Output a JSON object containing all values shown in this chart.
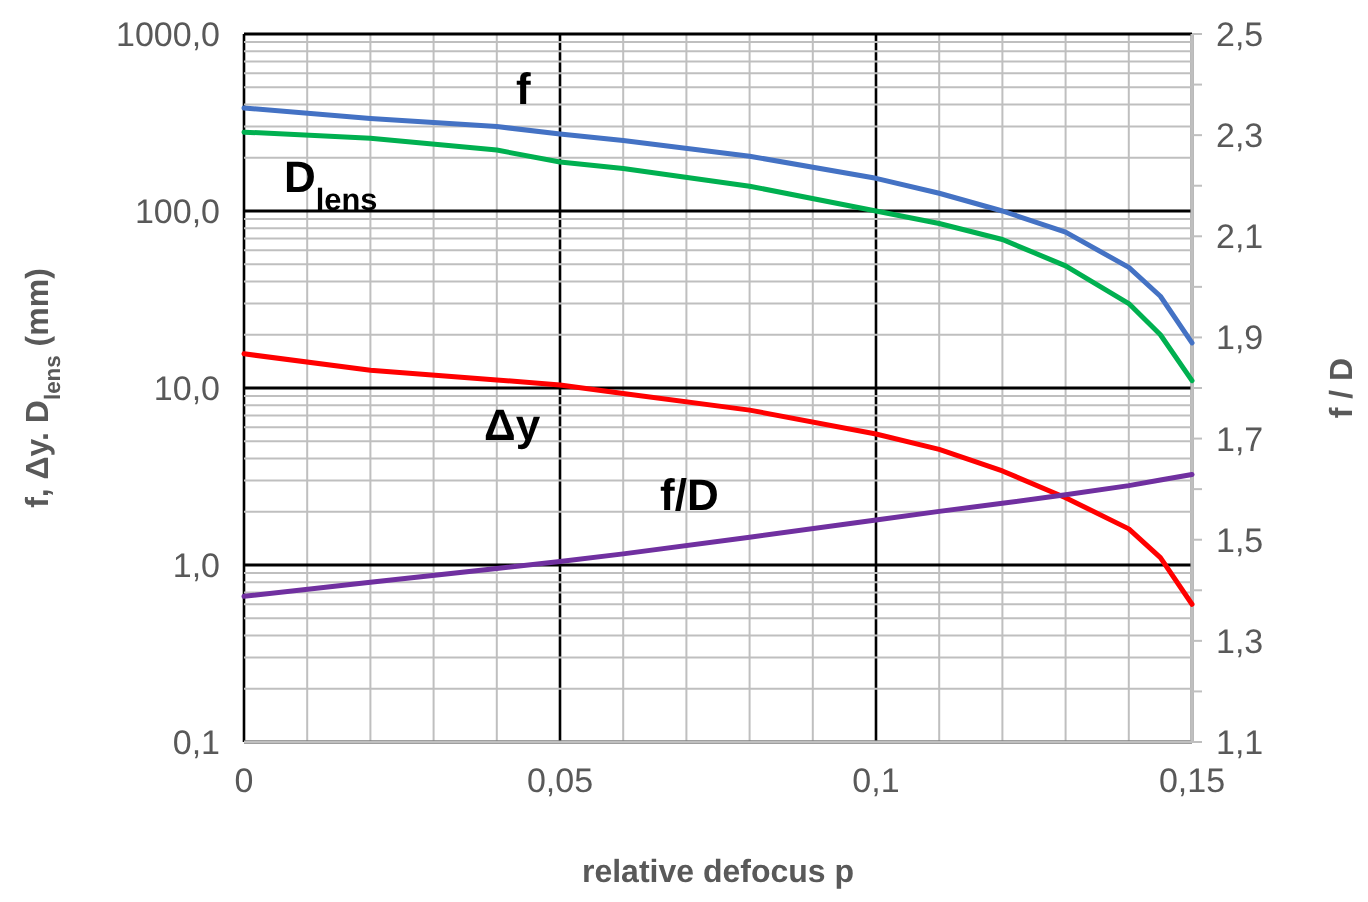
{
  "chart_data": {
    "type": "line",
    "xlabel": "relative defocus p",
    "ylabel": "f, Δy. D$_{lens}$  (mm)",
    "y2label": "f / D",
    "log": "y",
    "grid": true,
    "legend": false,
    "marker": "none",
    "line_style": "solid",
    "x": [
      0,
      0.02,
      0.04,
      0.05,
      0.06,
      0.08,
      0.1,
      0.11,
      0.12,
      0.13,
      0.14,
      0.145,
      0.15
    ],
    "xlim": [
      0,
      0.15
    ],
    "xticks": [
      {
        "value": 0,
        "label": "0"
      },
      {
        "value": 0.01,
        "label": null
      },
      {
        "value": 0.02,
        "label": null
      },
      {
        "value": 0.03,
        "label": null
      },
      {
        "value": 0.04,
        "label": null
      },
      {
        "value": 0.05,
        "label": "0,05"
      },
      {
        "value": 0.06,
        "label": null
      },
      {
        "value": 0.07,
        "label": null
      },
      {
        "value": 0.08,
        "label": null
      },
      {
        "value": 0.09,
        "label": null
      },
      {
        "value": 0.1,
        "label": "0,1"
      },
      {
        "value": 0.11,
        "label": null
      },
      {
        "value": 0.12,
        "label": null
      },
      {
        "value": 0.13,
        "label": null
      },
      {
        "value": 0.14,
        "label": null
      },
      {
        "value": 0.15,
        "label": "0,15"
      }
    ],
    "ylim": [
      0.1,
      1000
    ],
    "yticks": [
      {
        "value": 0.1,
        "label": "0,1"
      },
      {
        "value": 0.2,
        "label": null
      },
      {
        "value": 0.3,
        "label": null
      },
      {
        "value": 0.4,
        "label": null
      },
      {
        "value": 0.5,
        "label": null
      },
      {
        "value": 0.6,
        "label": null
      },
      {
        "value": 0.7,
        "label": null
      },
      {
        "value": 0.8,
        "label": null
      },
      {
        "value": 0.9,
        "label": null
      },
      {
        "value": 1,
        "label": "1,0"
      },
      {
        "value": 2,
        "label": null
      },
      {
        "value": 3,
        "label": null
      },
      {
        "value": 4,
        "label": null
      },
      {
        "value": 5,
        "label": null
      },
      {
        "value": 6,
        "label": null
      },
      {
        "value": 7,
        "label": null
      },
      {
        "value": 8,
        "label": null
      },
      {
        "value": 9,
        "label": null
      },
      {
        "value": 10,
        "label": "10,0"
      },
      {
        "value": 20,
        "label": null
      },
      {
        "value": 30,
        "label": null
      },
      {
        "value": 40,
        "label": null
      },
      {
        "value": 50,
        "label": null
      },
      {
        "value": 60,
        "label": null
      },
      {
        "value": 70,
        "label": null
      },
      {
        "value": 80,
        "label": null
      },
      {
        "value": 90,
        "label": null
      },
      {
        "value": 100,
        "label": "100,0"
      },
      {
        "value": 200,
        "label": null
      },
      {
        "value": 300,
        "label": null
      },
      {
        "value": 400,
        "label": null
      },
      {
        "value": 500,
        "label": null
      },
      {
        "value": 600,
        "label": null
      },
      {
        "value": 700,
        "label": null
      },
      {
        "value": 800,
        "label": null
      },
      {
        "value": 900,
        "label": null
      },
      {
        "value": 1000,
        "label": "1000,0"
      }
    ],
    "y2lim": [
      1.1,
      2.5
    ],
    "y2ticks": [
      {
        "value": 1.1,
        "label": "1,1"
      },
      {
        "value": 1.2,
        "label": null
      },
      {
        "value": 1.3,
        "label": "1,3"
      },
      {
        "value": 1.4,
        "label": null
      },
      {
        "value": 1.5,
        "label": "1,5"
      },
      {
        "value": 1.6,
        "label": null
      },
      {
        "value": 1.7,
        "label": "1,7"
      },
      {
        "value": 1.8,
        "label": null
      },
      {
        "value": 1.9,
        "label": "1,9"
      },
      {
        "value": 2.0,
        "label": null
      },
      {
        "value": 2.1,
        "label": "2,1"
      },
      {
        "value": 2.2,
        "label": null
      },
      {
        "value": 2.3,
        "label": "2,3"
      },
      {
        "value": 2.4,
        "label": null
      },
      {
        "value": 2.5,
        "label": "2,5"
      }
    ],
    "series": [
      {
        "name": "f",
        "color": "#4472c4",
        "values": [
          382,
          333,
          300,
          272,
          250,
          204,
          153,
          126,
          100,
          76,
          48,
          33,
          18
        ]
      },
      {
        "name": "D$_{lens}$",
        "color": "#00b050",
        "values": [
          279,
          258,
          221,
          189,
          174,
          138,
          100,
          85,
          69,
          49,
          30,
          20,
          11
        ]
      },
      {
        "name": "Δy",
        "color": "#ff0000",
        "values": [
          15.6,
          12.6,
          11.1,
          10.4,
          9.3,
          7.5,
          5.5,
          4.5,
          3.4,
          2.4,
          1.6,
          1.1,
          0.6
        ]
      },
      {
        "name": "f/D",
        "color": "#7030a0",
        "axis": "y2",
        "values": [
          1.388,
          1.416,
          1.443,
          1.457,
          1.472,
          1.505,
          1.539,
          1.556,
          1.572,
          1.589,
          1.607,
          1.618,
          1.629
        ]
      }
    ]
  }
}
